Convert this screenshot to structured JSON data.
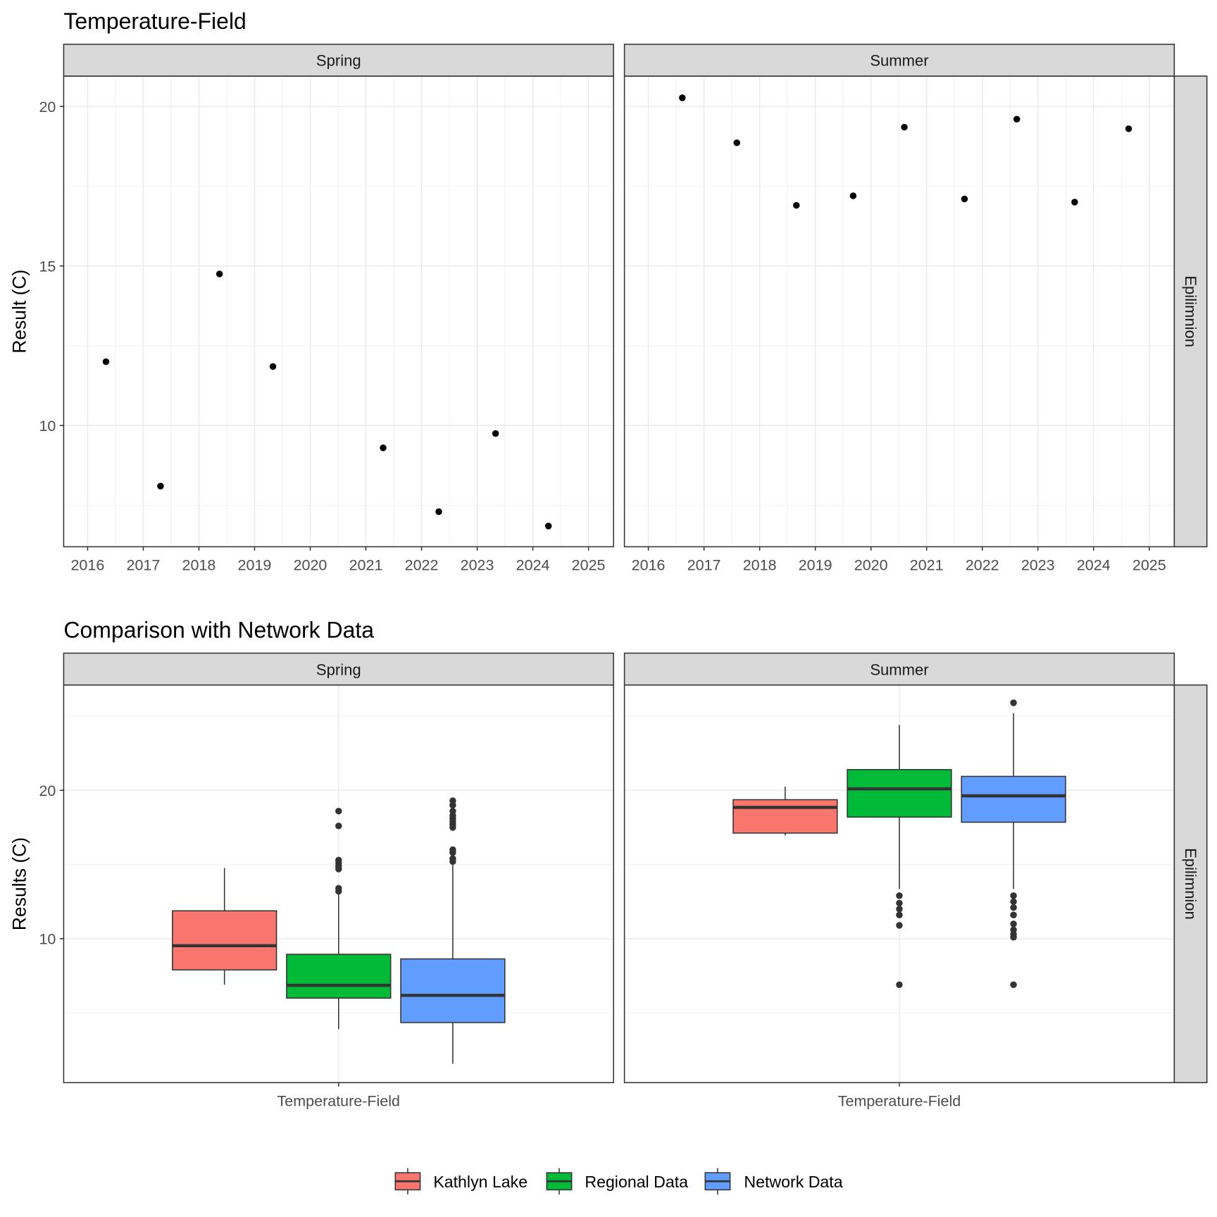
{
  "chart_data": [
    {
      "type": "scatter",
      "title": "Temperature-Field",
      "ylabel": "Result (C)",
      "xlabel": "",
      "xlim": [
        2015.57,
        2025.45
      ],
      "ylim": [
        6.2,
        20.95
      ],
      "x_ticks": [
        2016,
        2017,
        2018,
        2019,
        2020,
        2021,
        2022,
        2023,
        2024,
        2025
      ],
      "x_tick_labels": [
        "2016",
        "2017",
        "2018",
        "2019",
        "2020",
        "2021",
        "2022",
        "2023",
        "2024",
        "2025"
      ],
      "y_ticks": [
        10,
        15,
        20
      ],
      "y_tick_labels": [
        "10",
        "15",
        "20"
      ],
      "grid": true,
      "row_strip": "Epilimnion",
      "panels": [
        {
          "name": "Spring",
          "x": [
            2016.33,
            2017.31,
            2018.37,
            2019.33,
            2021.31,
            2022.31,
            2023.33,
            2024.28
          ],
          "y": [
            12.0,
            8.1,
            14.75,
            11.85,
            9.3,
            7.3,
            9.75,
            6.85
          ]
        },
        {
          "name": "Summer",
          "x": [
            2016.61,
            2017.59,
            2018.66,
            2019.68,
            2020.6,
            2021.68,
            2022.62,
            2023.66,
            2024.63
          ],
          "y": [
            20.27,
            18.86,
            16.9,
            17.2,
            19.35,
            17.1,
            19.6,
            17.0,
            19.3
          ]
        }
      ]
    },
    {
      "type": "box",
      "title": "Comparison with Network Data",
      "ylabel": "Results (C)",
      "xlabel": "",
      "categories": [
        "Temperature-Field"
      ],
      "ylim": [
        0.3,
        27.1
      ],
      "y_ticks": [
        10,
        20
      ],
      "y_tick_labels": [
        "10",
        "20"
      ],
      "grid": true,
      "row_strip": "Epilimnion",
      "legend": {
        "position": "bottom",
        "entries": [
          "Kathlyn Lake",
          "Regional Data",
          "Network Data"
        ]
      },
      "colors": [
        "#F8766D",
        "#00BA38",
        "#619CFF"
      ],
      "panels": [
        {
          "name": "Spring",
          "series": [
            {
              "name": "Kathlyn Lake",
              "lower": 6.9,
              "q1": 7.9,
              "median": 9.53,
              "q3": 11.88,
              "upper": 14.76,
              "outliers": []
            },
            {
              "name": "Regional Data",
              "lower": 3.9,
              "q1": 6.0,
              "median": 6.86,
              "q3": 8.95,
              "upper": 13.1,
              "outliers": [
                13.2,
                13.4,
                14.7,
                14.9,
                15.1,
                15.3,
                17.6,
                18.6
              ]
            },
            {
              "name": "Network Data",
              "lower": 1.57,
              "q1": 4.35,
              "median": 6.18,
              "q3": 8.64,
              "upper": 15.1,
              "outliers": [
                15.2,
                15.4,
                15.8,
                16.0,
                17.5,
                17.7,
                17.9,
                18.1,
                18.3,
                18.6,
                19.0,
                19.3
              ]
            }
          ]
        },
        {
          "name": "Summer",
          "series": [
            {
              "name": "Kathlyn Lake",
              "lower": 16.96,
              "q1": 17.12,
              "median": 18.85,
              "q3": 19.37,
              "upper": 20.26,
              "outliers": []
            },
            {
              "name": "Regional Data",
              "lower": 13.35,
              "q1": 18.2,
              "median": 20.1,
              "q3": 21.4,
              "upper": 24.4,
              "outliers": [
                12.9,
                12.4,
                12.0,
                11.6,
                10.9,
                6.9
              ]
            },
            {
              "name": "Network Data",
              "lower": 13.35,
              "q1": 17.85,
              "median": 19.63,
              "q3": 20.94,
              "upper": 25.2,
              "outliers": [
                25.9,
                12.9,
                12.5,
                12.1,
                11.6,
                11.0,
                10.6,
                10.3,
                10.1,
                6.9
              ]
            }
          ]
        }
      ]
    }
  ]
}
